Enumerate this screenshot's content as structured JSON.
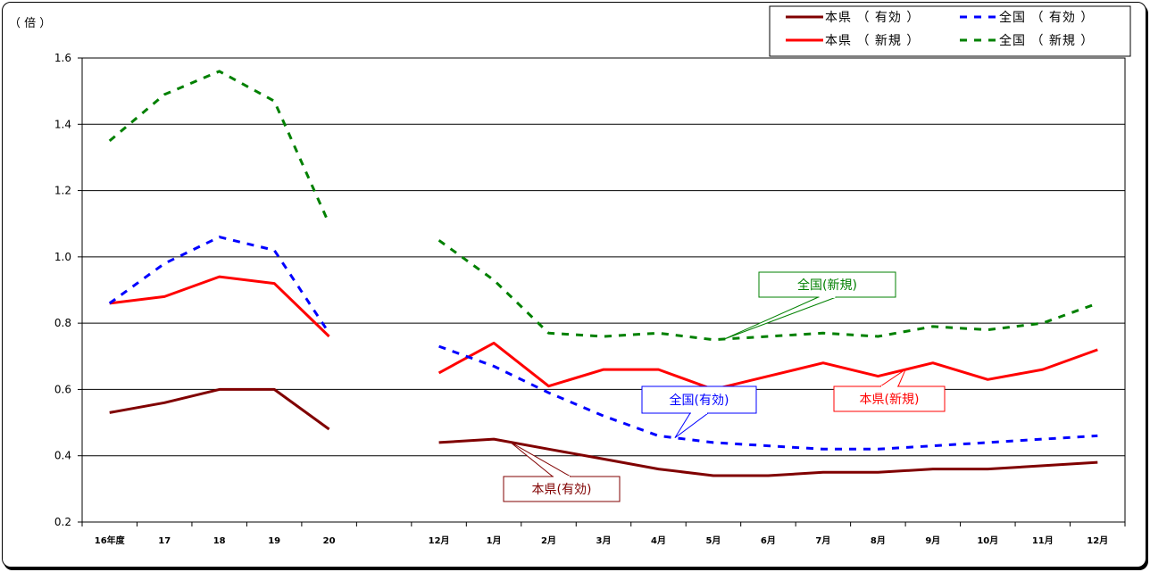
{
  "chart_data": {
    "type": "line",
    "unit_label": "（ 倍 ）",
    "y_axis": {
      "ylim": [
        0.2,
        1.6
      ],
      "ticks": [
        "0.2",
        "0.4",
        "0.6",
        "0.8",
        "1.0",
        "1.2",
        "1.4",
        "1.6"
      ]
    },
    "grid": true,
    "legend_position": "top-right",
    "segments": [
      {
        "name": "annual",
        "categories": [
          "16年度",
          "17",
          "18",
          "19",
          "20"
        ]
      },
      {
        "name": "monthly",
        "categories": [
          "12月",
          "1月",
          "2月",
          "3月",
          "4月",
          "5月",
          "6月",
          "7月",
          "8月",
          "9月",
          "10月",
          "11月",
          "12月"
        ]
      }
    ],
    "series": [
      {
        "name": "本県（有効）",
        "legend_label": "本県 （ 有効 ）",
        "color": "#800000",
        "style": "solid",
        "annual": [
          0.53,
          0.56,
          0.6,
          0.6,
          0.48
        ],
        "monthly": [
          0.44,
          0.45,
          0.42,
          0.39,
          0.36,
          0.34,
          0.34,
          0.35,
          0.35,
          0.36,
          0.36,
          0.37,
          0.38
        ]
      },
      {
        "name": "本県（新規）",
        "legend_label": "本県 （ 新規 ）",
        "color": "#ff0000",
        "style": "solid",
        "annual": [
          0.86,
          0.88,
          0.94,
          0.92,
          0.76
        ],
        "monthly": [
          0.65,
          0.74,
          0.61,
          0.66,
          0.66,
          0.6,
          0.64,
          0.68,
          0.64,
          0.68,
          0.63,
          0.66,
          0.72
        ]
      },
      {
        "name": "全国（有効）",
        "legend_label": "全国 （ 有効 ）",
        "color": "#0000ff",
        "style": "dashed",
        "annual": [
          0.86,
          0.98,
          1.06,
          1.02,
          0.77
        ],
        "monthly": [
          0.73,
          0.67,
          0.59,
          0.52,
          0.46,
          0.44,
          0.43,
          0.42,
          0.42,
          0.43,
          0.44,
          0.45,
          0.46
        ]
      },
      {
        "name": "全国（新規）",
        "legend_label": "全国 （ 新規 ）",
        "color": "#008000",
        "style": "dashed",
        "annual": [
          1.35,
          1.49,
          1.56,
          1.47,
          1.1
        ],
        "monthly": [
          1.05,
          0.93,
          0.77,
          0.76,
          0.77,
          0.75,
          0.76,
          0.77,
          0.76,
          0.79,
          0.78,
          0.8,
          0.86
        ]
      }
    ],
    "annotations": [
      {
        "text": "全国(新規)",
        "series": "全国（新規）",
        "color": "#008000"
      },
      {
        "text": "全国(有効)",
        "series": "全国（有効）",
        "color": "#0000ff"
      },
      {
        "text": "本県(新規)",
        "series": "本県（新規）",
        "color": "#ff0000"
      },
      {
        "text": "本県(有効)",
        "series": "本県（有効）",
        "color": "#800000"
      }
    ]
  }
}
